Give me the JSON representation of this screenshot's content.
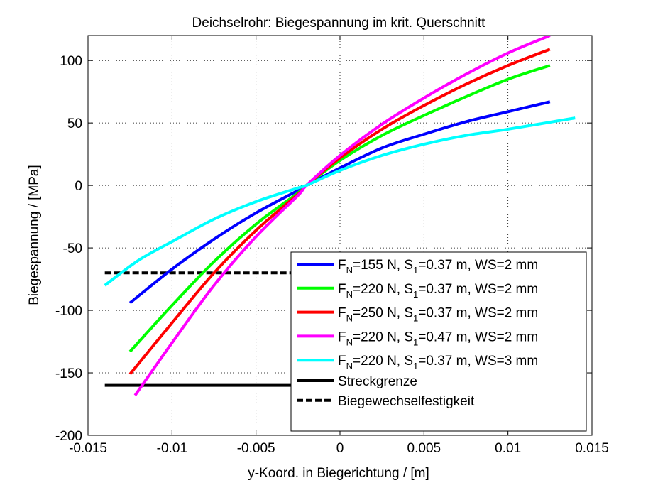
{
  "chart_data": {
    "type": "line",
    "title": "Deichselrohr: Biegespannung im krit. Querschnitt",
    "xlabel": "y-Koord. in Biegerichtung / [m]",
    "ylabel": "Biegespannung / [MPa]",
    "xlim": [
      -0.015,
      0.015
    ],
    "ylim": [
      -200,
      120
    ],
    "xticks": [
      -0.015,
      -0.01,
      -0.005,
      0,
      0.005,
      0.01,
      0.015
    ],
    "xtick_labels": [
      "-0.015",
      "-0.01",
      "-0.005",
      "0",
      "0.005",
      "0.01",
      "0.015"
    ],
    "yticks": [
      -200,
      -150,
      -100,
      -50,
      0,
      50,
      100
    ],
    "ytick_labels": [
      "-200",
      "-150",
      "-100",
      "-50",
      "0",
      "50",
      "100"
    ],
    "grid": true,
    "legend_position": "bottom-right",
    "series": [
      {
        "name": "F_N=155 N, S_1=0.37 m, WS=2 mm",
        "legend": {
          "pre": "F",
          "sub1": "N",
          "mid": "=155 N, S",
          "sub2": "1",
          "post": "=0.37 m, WS=2 mm"
        },
        "color": "#0000ff",
        "style": "solid",
        "x": [
          -0.0125,
          -0.01,
          -0.0075,
          -0.005,
          -0.0025,
          -0.002,
          0,
          0.0025,
          0.005,
          0.0075,
          0.01,
          0.0125
        ],
        "y": [
          -94,
          -67,
          -43,
          -22,
          -4,
          0,
          14,
          30,
          41,
          51,
          59,
          67
        ]
      },
      {
        "name": "F_N=220 N, S_1=0.37 m, WS=2 mm",
        "legend": {
          "pre": "F",
          "sub1": "N",
          "mid": "=220 N, S",
          "sub2": "1",
          "post": "=0.37 m, WS=2 mm"
        },
        "color": "#00ff00",
        "style": "solid",
        "x": [
          -0.0125,
          -0.01,
          -0.0075,
          -0.005,
          -0.0025,
          -0.002,
          0,
          0.0025,
          0.005,
          0.0075,
          0.01,
          0.0125
        ],
        "y": [
          -133,
          -96,
          -61,
          -31,
          -6,
          0,
          20,
          40,
          56,
          71,
          85,
          96
        ]
      },
      {
        "name": "F_N=250 N, S_1=0.37 m, WS=2 mm",
        "legend": {
          "pre": "F",
          "sub1": "N",
          "mid": "=250 N, S",
          "sub2": "1",
          "post": "=0.37 m, WS=2 mm"
        },
        "color": "#ff0000",
        "style": "solid",
        "x": [
          -0.0125,
          -0.01,
          -0.0075,
          -0.005,
          -0.0025,
          -0.002,
          0,
          0.0025,
          0.005,
          0.0075,
          0.01,
          0.0125
        ],
        "y": [
          -151,
          -110,
          -70,
          -36,
          -7,
          0,
          22,
          45,
          64,
          81,
          96,
          109
        ]
      },
      {
        "name": "F_N=220 N, S_1=0.47 m, WS=2 mm",
        "legend": {
          "pre": "F",
          "sub1": "N",
          "mid": "=220 N, S",
          "sub2": "1",
          "post": "=0.47 m, WS=2 mm"
        },
        "color": "#ff00ff",
        "style": "solid",
        "x": [
          -0.0122,
          -0.01,
          -0.0075,
          -0.005,
          -0.0025,
          -0.002,
          0,
          0.0025,
          0.005,
          0.0075,
          0.01,
          0.0125
        ],
        "y": [
          -168,
          -126,
          -80,
          -41,
          -8,
          0,
          24,
          49,
          70,
          89,
          106,
          120
        ]
      },
      {
        "name": "F_N=220 N, S_1=0.37 m, WS=3 mm",
        "legend": {
          "pre": "F",
          "sub1": "N",
          "mid": "=220 N, S",
          "sub2": "1",
          "post": "=0.37 m, WS=3 mm"
        },
        "color": "#00ffff",
        "style": "solid",
        "x": [
          -0.014,
          -0.012,
          -0.01,
          -0.0075,
          -0.005,
          -0.0025,
          -0.002,
          0,
          0.0025,
          0.005,
          0.0075,
          0.01,
          0.014
        ],
        "y": [
          -80,
          -60,
          -45,
          -27,
          -13,
          -2,
          0,
          12,
          24,
          33,
          40,
          45,
          54
        ]
      },
      {
        "name": "Streckgrenze",
        "legend": {
          "pre": "Streckgrenze"
        },
        "color": "#000000",
        "style": "solid",
        "x": [
          -0.014,
          0.0125
        ],
        "y": [
          -160,
          -160
        ]
      },
      {
        "name": "Biegewechselfestigkeit",
        "legend": {
          "pre": "Biegewechselfestigkeit"
        },
        "color": "#000000",
        "style": "dashed",
        "x": [
          -0.014,
          0.0125
        ],
        "y": [
          -70,
          -70
        ]
      }
    ]
  }
}
